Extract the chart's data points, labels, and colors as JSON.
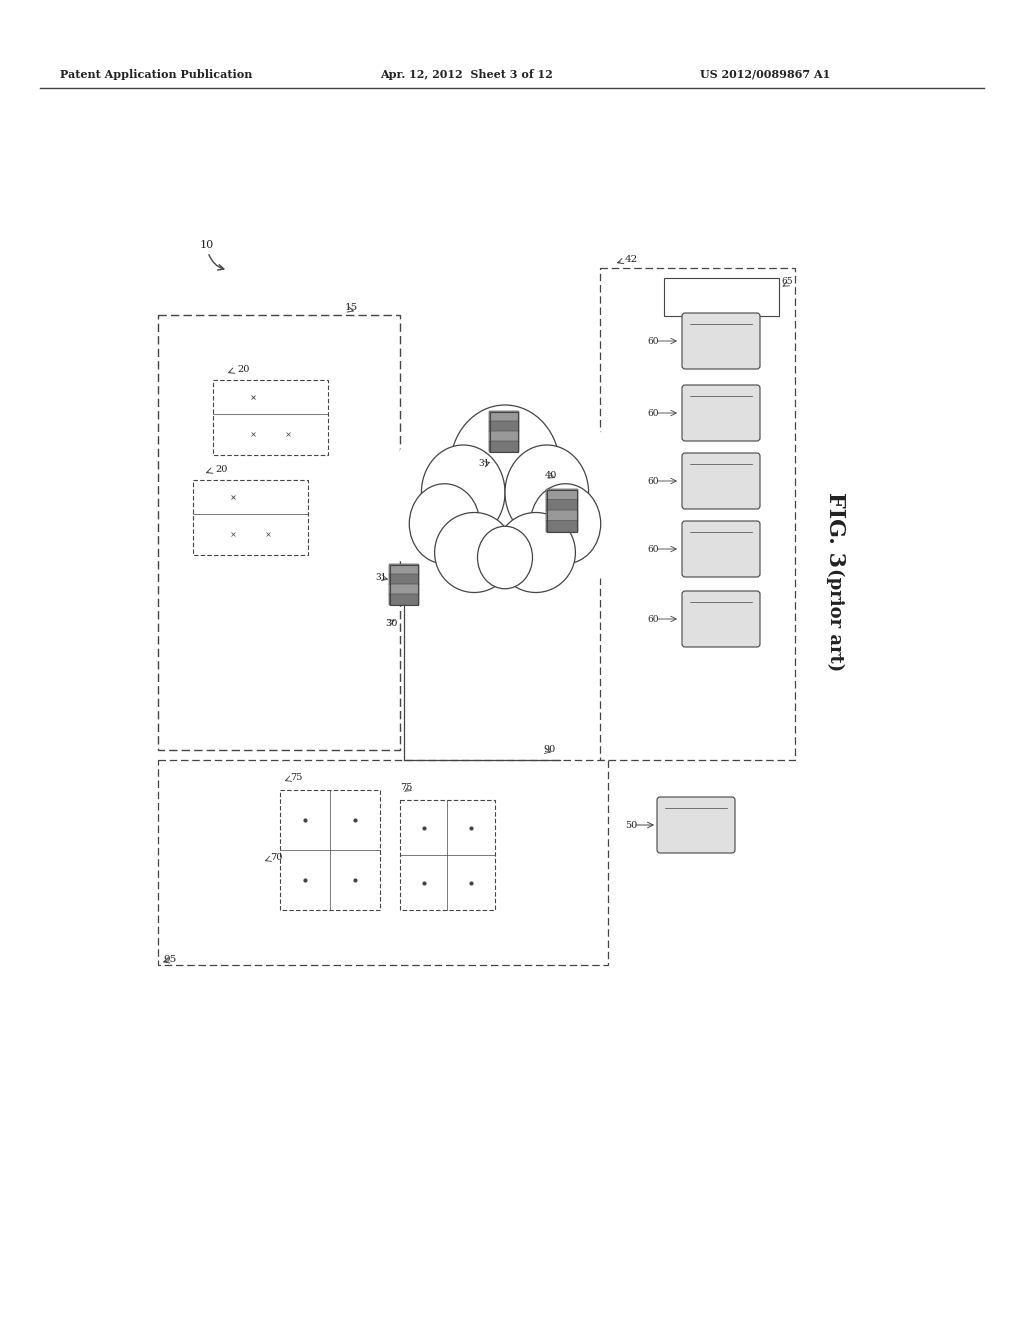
{
  "title_left": "Patent Application Publication",
  "title_center": "Apr. 12, 2012  Sheet 3 of 12",
  "title_right": "US 2012/0089867 A1",
  "fig_label": "FIG. 3",
  "fig_sublabel": "(prior art)",
  "bg_color": "#ffffff",
  "line_color": "#444444",
  "label_color": "#222222",
  "cloud_color": "#ffffff",
  "switch_color": "#888888",
  "disk_color": "#e0e0e0"
}
